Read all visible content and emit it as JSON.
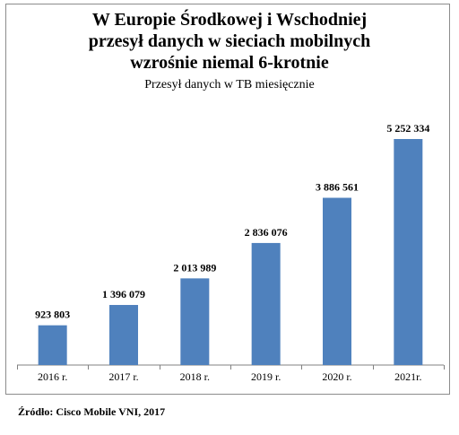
{
  "title_lines": [
    "W Europie Środkowej i Wschodniej",
    "przesył danych w sieciach mobilnych",
    "wzrośnie niemal 6-krotnie"
  ],
  "subtitle": "Przesył danych w TB miesięcznie",
  "source": "Źródło: Cisco Mobile VNI, 2017",
  "colors": {
    "bar": "#4f81bd",
    "axis": "#808080"
  },
  "chart_data": {
    "type": "bar",
    "title": "W Europie Środkowej i Wschodniej przesył danych w sieciach mobilnych wzrośnie niemal 6-krotnie",
    "subtitle": "Przesył danych w TB miesięcznie",
    "categories": [
      "2016 r.",
      "2017 r.",
      "2018 r.",
      "2019 r.",
      "2020 r.",
      "2021r."
    ],
    "values": [
      923803,
      1396079,
      2013989,
      2836076,
      3886561,
      5252334
    ],
    "value_labels": [
      "923 803",
      "1 396 079",
      "2 013 989",
      "2 836 076",
      "3 886 561",
      "5 252 334"
    ],
    "xlabel": "",
    "ylabel": "",
    "ylim": [
      0,
      5252334
    ],
    "grid": false,
    "legend": "none"
  }
}
